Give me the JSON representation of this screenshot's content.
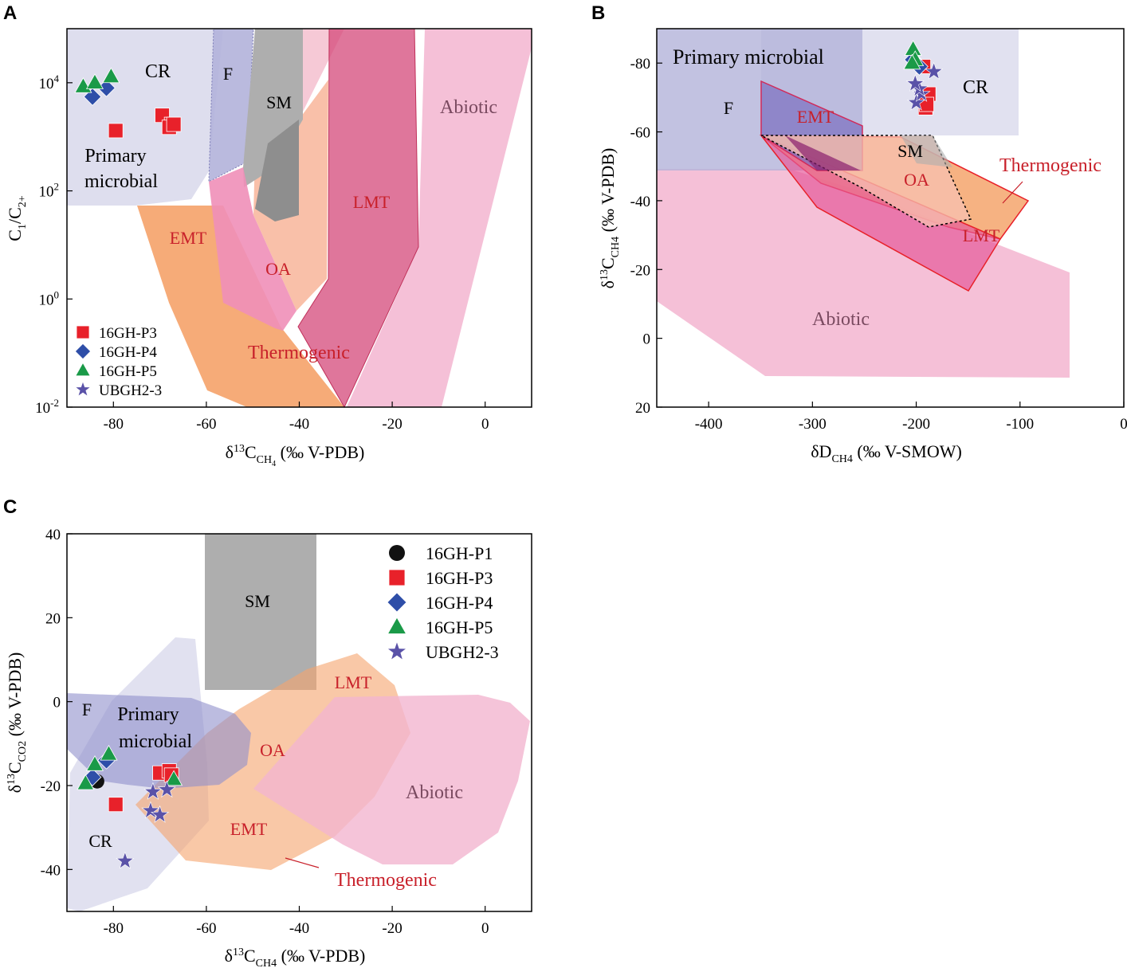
{
  "figure": {
    "panel_letters": [
      "A",
      "B",
      "C"
    ]
  },
  "colors": {
    "p1": "#111111",
    "p3": "#e8212a",
    "p4": "#2e4ea8",
    "p5": "#1a9a48",
    "ubgh": "#5a52a8",
    "microbial": "#c9c9e6",
    "cr": "#dedeee",
    "f": "#b3b3da",
    "emt": "#f5a46c",
    "oa": "#f8b9a0",
    "lmt": "#d4487a",
    "abiotic": "#f3b5d0",
    "sm": "#aeaeae"
  },
  "chart_data": [
    {
      "panel": "A",
      "type": "scatter",
      "x_axis": {
        "label": "δ13CCH4 (‰ V-PDB)",
        "ticks": [
          "-80",
          "-60",
          "-40",
          "-20",
          "0"
        ],
        "range": [
          -90,
          10
        ]
      },
      "y_axis": {
        "label": "C1/C2+",
        "scale": "log",
        "ticks": [
          "10-2",
          "100",
          "102",
          "104"
        ],
        "range": [
          0.01,
          100000
        ]
      },
      "regions": [
        "CR",
        "F",
        "SM",
        "Abiotic",
        "Primary microbial",
        "LMT",
        "EMT",
        "OA",
        "Thermogenic"
      ],
      "legend": [
        "16GH-P3",
        "16GH-P4",
        "16GH-P5",
        "UBGH2-3"
      ],
      "series": [
        {
          "name": "16GH-P3",
          "marker": "square",
          "points": [
            [
              -79.5,
              1300
            ],
            [
              -69.5,
              2500
            ],
            [
              -67.5,
              1700
            ],
            [
              -68,
              1500
            ],
            [
              -67,
              1700
            ]
          ]
        },
        {
          "name": "16GH-P4",
          "marker": "diamond",
          "points": [
            [
              -84.5,
              5500
            ],
            [
              -81.5,
              8000
            ]
          ]
        },
        {
          "name": "16GH-P5",
          "marker": "triangle",
          "points": [
            [
              -86.5,
              8500
            ],
            [
              -84,
              10000
            ],
            [
              -80.5,
              13000
            ]
          ]
        },
        {
          "name": "UBGH2-3",
          "marker": "star",
          "points": []
        }
      ]
    },
    {
      "panel": "B",
      "type": "scatter",
      "x_axis": {
        "label": "δDCH4 (‰ V-SMOW)",
        "ticks": [
          "-400",
          "-300",
          "-200",
          "-100",
          "0"
        ],
        "range": [
          -450,
          0
        ]
      },
      "y_axis": {
        "label": "δ13CCH4 (‰ V-PDB)",
        "ticks": [
          "-80",
          "-60",
          "-40",
          "-20",
          "0",
          "20"
        ],
        "range": [
          -90,
          20
        ],
        "inverted": true
      },
      "regions": [
        "Primary microbial",
        "CR",
        "F",
        "EMT",
        "SM",
        "OA",
        "Thermogenic",
        "LMT",
        "Abiotic"
      ],
      "series": [
        {
          "name": "16GH-P3",
          "marker": "square",
          "points": [
            [
              -193,
              -79
            ],
            [
              -188,
              -71
            ],
            [
              -191,
              -67
            ],
            [
              -190,
              -68
            ]
          ]
        },
        {
          "name": "16GH-P4",
          "marker": "diamond",
          "points": [
            [
              -203,
              -81
            ],
            [
              -197,
              -79
            ]
          ]
        },
        {
          "name": "16GH-P5",
          "marker": "triangle",
          "points": [
            [
              -203,
              -84
            ],
            [
              -201,
              -81
            ],
            [
              -204,
              -80
            ]
          ]
        },
        {
          "name": "UBGH2-3",
          "marker": "star",
          "points": [
            [
              -183,
              -77.5
            ],
            [
              -200,
              -68.5
            ],
            [
              -195,
              -71
            ],
            [
              -197,
              -72.5
            ],
            [
              -201,
              -74
            ]
          ]
        }
      ]
    },
    {
      "panel": "C",
      "type": "scatter",
      "x_axis": {
        "label": "δ13CCH4 (‰ V-PDB)",
        "ticks": [
          "-80",
          "-60",
          "-40",
          "-20",
          "0"
        ],
        "range": [
          -90,
          10
        ]
      },
      "y_axis": {
        "label": "δ13CCO2 (‰ V-PDB)",
        "ticks": [
          "-40",
          "-20",
          "0",
          "20",
          "40"
        ],
        "range": [
          -50,
          40
        ]
      },
      "regions": [
        "SM",
        "LMT",
        "F",
        "Primary microbial",
        "OA",
        "Abiotic",
        "CR",
        "EMT",
        "Thermogenic"
      ],
      "legend": [
        "16GH-P1",
        "16GH-P3",
        "16GH-P4",
        "16GH-P5",
        "UBGH2-3"
      ],
      "series": [
        {
          "name": "16GH-P1",
          "marker": "circle",
          "points": [
            [
              -83.5,
              -19
            ]
          ]
        },
        {
          "name": "16GH-P3",
          "marker": "square",
          "points": [
            [
              -79.5,
              -24.5
            ],
            [
              -70,
              -17
            ],
            [
              -68,
              -16.5
            ],
            [
              -67.5,
              -17.5
            ]
          ]
        },
        {
          "name": "16GH-P4",
          "marker": "diamond",
          "points": [
            [
              -84.5,
              -18
            ],
            [
              -81.5,
              -14
            ]
          ]
        },
        {
          "name": "16GH-P5",
          "marker": "triangle",
          "points": [
            [
              -86,
              -19.5
            ],
            [
              -84,
              -15
            ],
            [
              -81,
              -12.5
            ],
            [
              -67,
              -18.5
            ]
          ]
        },
        {
          "name": "UBGH2-3",
          "marker": "star",
          "points": [
            [
              -77.5,
              -38
            ],
            [
              -71.5,
              -21.5
            ],
            [
              -68.5,
              -21
            ],
            [
              -72,
              -26
            ],
            [
              -70,
              -27
            ]
          ]
        }
      ]
    }
  ]
}
